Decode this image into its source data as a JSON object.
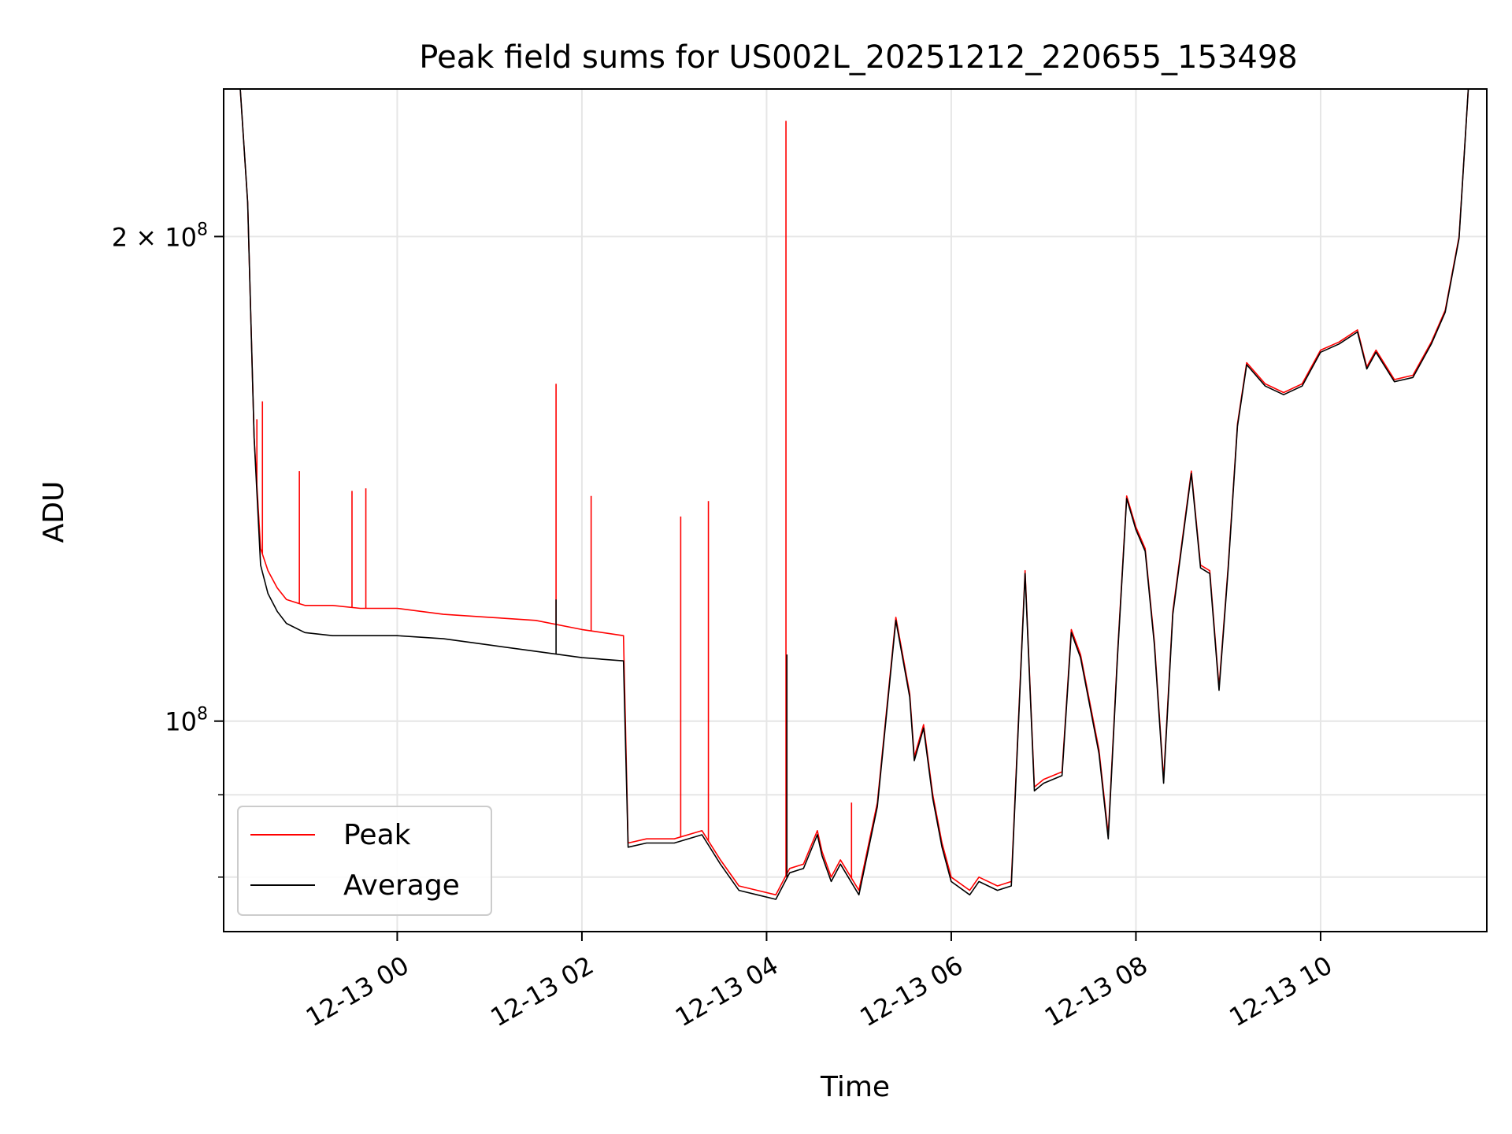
{
  "chart_data": {
    "type": "line",
    "title": "Peak field sums for US002L_20251212_220655_153498",
    "xlabel": "Time",
    "ylabel": "ADU",
    "yscale": "log",
    "grid": true,
    "legend_position": "lower-left",
    "xlim_hours": [
      -1.88,
      11.8
    ],
    "ylim": [
      74000000,
      247000000
    ],
    "x_ticks": [
      {
        "hours": 0,
        "label": "12-13 00"
      },
      {
        "hours": 2,
        "label": "12-13 02"
      },
      {
        "hours": 4,
        "label": "12-13 04"
      },
      {
        "hours": 6,
        "label": "12-13 06"
      },
      {
        "hours": 8,
        "label": "12-13 08"
      },
      {
        "hours": 10,
        "label": "12-13 10"
      }
    ],
    "y_ticks": [
      {
        "value": 200000000,
        "label_base": "2 × 10",
        "label_exp": "8"
      },
      {
        "value": 100000000,
        "label_base": "10",
        "label_exp": "8"
      }
    ],
    "y_minor_ticks": [
      80000000,
      90000000
    ],
    "series": [
      {
        "name": "Peak",
        "color": "#ff0000",
        "hours": [
          -1.88,
          -1.7,
          -1.62,
          -1.55,
          -1.48,
          -1.4,
          -1.3,
          -1.2,
          -1.0,
          -0.7,
          -0.4,
          0,
          0.5,
          1.0,
          1.5,
          2.0,
          2.45,
          2.5,
          2.7,
          3.0,
          3.3,
          3.5,
          3.7,
          3.9,
          4.1,
          4.25,
          4.4,
          4.55,
          4.6,
          4.7,
          4.8,
          5.0,
          5.2,
          5.4,
          5.55,
          5.6,
          5.7,
          5.8,
          5.9,
          6.0,
          6.2,
          6.3,
          6.5,
          6.65,
          6.8,
          6.9,
          7.0,
          7.2,
          7.3,
          7.4,
          7.6,
          7.7,
          7.8,
          7.9,
          8.0,
          8.1,
          8.2,
          8.3,
          8.4,
          8.6,
          8.7,
          8.8,
          8.9,
          9.0,
          9.1,
          9.2,
          9.4,
          9.6,
          9.8,
          10.0,
          10.2,
          10.4,
          10.5,
          10.6,
          10.8,
          11.0,
          11.2,
          11.35,
          11.5,
          11.6,
          11.8
        ],
        "values": [
          247000000,
          247000000,
          210000000,
          150000000,
          128000000,
          124000000,
          121000000,
          119000000,
          118000000,
          118000000,
          117500000,
          117500000,
          116500000,
          116000000,
          115500000,
          114000000,
          113000000,
          84000000,
          84500000,
          84500000,
          85500000,
          82000000,
          79000000,
          78500000,
          78000000,
          81000000,
          81500000,
          85500000,
          83000000,
          80000000,
          82000000,
          78500000,
          89000000,
          116000000,
          104000000,
          95000000,
          99500000,
          90000000,
          84000000,
          80000000,
          78500000,
          80000000,
          79000000,
          79500000,
          124000000,
          91000000,
          92000000,
          93000000,
          114000000,
          110000000,
          96000000,
          85000000,
          110000000,
          138000000,
          132000000,
          128000000,
          112000000,
          92000000,
          117000000,
          143000000,
          125000000,
          124000000,
          105000000,
          125000000,
          153000000,
          167000000,
          162000000,
          160000000,
          162000000,
          170000000,
          172000000,
          175000000,
          166000000,
          170000000,
          163000000,
          164000000,
          172000000,
          180000000,
          200000000,
          247000000,
          247000000
        ]
      },
      {
        "name": "Average",
        "color": "#000000",
        "hours": [
          -1.88,
          -1.7,
          -1.62,
          -1.55,
          -1.48,
          -1.4,
          -1.3,
          -1.2,
          -1.0,
          -0.7,
          -0.4,
          0,
          0.5,
          1.0,
          1.5,
          2.0,
          2.45,
          2.5,
          2.7,
          3.0,
          3.3,
          3.5,
          3.7,
          3.9,
          4.1,
          4.25,
          4.4,
          4.55,
          4.6,
          4.7,
          4.8,
          5.0,
          5.2,
          5.4,
          5.55,
          5.6,
          5.7,
          5.8,
          5.9,
          6.0,
          6.2,
          6.3,
          6.5,
          6.65,
          6.8,
          6.9,
          7.0,
          7.2,
          7.3,
          7.4,
          7.6,
          7.7,
          7.8,
          7.9,
          8.0,
          8.1,
          8.2,
          8.3,
          8.4,
          8.6,
          8.7,
          8.8,
          8.9,
          9.0,
          9.1,
          9.2,
          9.4,
          9.6,
          9.8,
          10.0,
          10.2,
          10.4,
          10.5,
          10.6,
          10.8,
          11.0,
          11.2,
          11.35,
          11.5,
          11.6,
          11.8
        ],
        "values": [
          247000000,
          247000000,
          210000000,
          150000000,
          125000000,
          120000000,
          117000000,
          115000000,
          113500000,
          113000000,
          113000000,
          113000000,
          112500000,
          111500000,
          110500000,
          109500000,
          109000000,
          83500000,
          84000000,
          84000000,
          85000000,
          81500000,
          78500000,
          78000000,
          77500000,
          80500000,
          81000000,
          85000000,
          82500000,
          79500000,
          81500000,
          78000000,
          88500000,
          115500000,
          103500000,
          94500000,
          99000000,
          89500000,
          83500000,
          79500000,
          78000000,
          79500000,
          78500000,
          79000000,
          123500000,
          90500000,
          91500000,
          92500000,
          113500000,
          109500000,
          95500000,
          84500000,
          109500000,
          137500000,
          131500000,
          127500000,
          111500000,
          91500000,
          116500000,
          142500000,
          124500000,
          123500000,
          104500000,
          124500000,
          152500000,
          166500000,
          161500000,
          159500000,
          161500000,
          169500000,
          171500000,
          174500000,
          165500000,
          169500000,
          162500000,
          163500000,
          171500000,
          179500000,
          199500000,
          247000000,
          247000000
        ]
      }
    ],
    "peak_spikes": [
      {
        "hours": -1.52,
        "value": 154000000
      },
      {
        "hours": -1.46,
        "value": 158000000
      },
      {
        "hours": -1.06,
        "value": 143000000
      },
      {
        "hours": -0.49,
        "value": 139000000
      },
      {
        "hours": -0.34,
        "value": 139500000
      },
      {
        "hours": 1.72,
        "value": 162000000
      },
      {
        "hours": 2.1,
        "value": 138000000
      },
      {
        "hours": 3.07,
        "value": 134000000
      },
      {
        "hours": 3.37,
        "value": 137000000
      },
      {
        "hours": 4.21,
        "value": 236000000
      },
      {
        "hours": 4.92,
        "value": 89000000
      }
    ],
    "average_spikes": [
      {
        "hours": 1.72,
        "value": 119000000
      },
      {
        "hours": 4.22,
        "value": 110000000
      }
    ]
  }
}
